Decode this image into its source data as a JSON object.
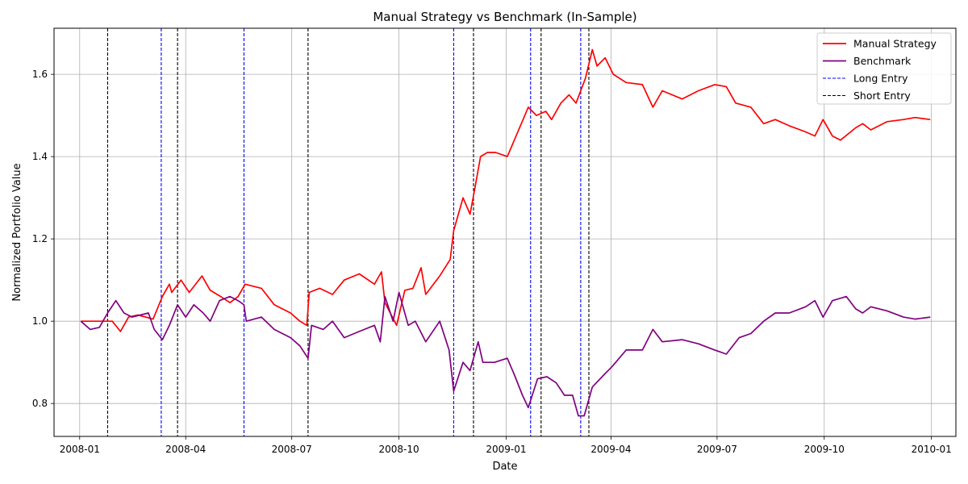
{
  "chart_data": {
    "type": "line",
    "title": "Manual Strategy vs Benchmark (In-Sample)",
    "xlabel": "Date",
    "ylabel": "Normalized Portfolio Value",
    "xlim": [
      "2007-12-10",
      "2010-01-22"
    ],
    "ylim": [
      0.72,
      1.712
    ],
    "x_ticks": [
      "2008-01",
      "2008-04",
      "2008-07",
      "2008-10",
      "2009-01",
      "2009-04",
      "2009-07",
      "2009-10",
      "2010-01"
    ],
    "y_ticks": [
      0.8,
      1.0,
      1.2,
      1.4,
      1.6
    ],
    "y_tick_labels": [
      "0.8",
      "1.0",
      "1.2",
      "1.4",
      "1.6"
    ],
    "grid": true,
    "legend_position": "top-right",
    "series": [
      {
        "name": "Manual Strategy",
        "color": "#ff0000",
        "style": "solid",
        "points": [
          [
            "2008-01-02",
            1.0
          ],
          [
            "2008-01-25",
            1.0
          ],
          [
            "2008-01-29",
            1.0
          ],
          [
            "2008-02-05",
            0.975
          ],
          [
            "2008-02-12",
            1.01
          ],
          [
            "2008-02-20",
            1.015
          ],
          [
            "2008-03-04",
            1.005
          ],
          [
            "2008-03-12",
            1.06
          ],
          [
            "2008-03-18",
            1.09
          ],
          [
            "2008-03-20",
            1.07
          ],
          [
            "2008-03-28",
            1.1
          ],
          [
            "2008-04-04",
            1.07
          ],
          [
            "2008-04-15",
            1.11
          ],
          [
            "2008-04-22",
            1.075
          ],
          [
            "2008-05-01",
            1.06
          ],
          [
            "2008-05-09",
            1.045
          ],
          [
            "2008-05-16",
            1.06
          ],
          [
            "2008-05-22",
            1.09
          ],
          [
            "2008-06-05",
            1.08
          ],
          [
            "2008-06-16",
            1.04
          ],
          [
            "2008-06-30",
            1.02
          ],
          [
            "2008-07-08",
            1.0
          ],
          [
            "2008-07-14",
            0.99
          ],
          [
            "2008-07-16",
            1.07
          ],
          [
            "2008-07-25",
            1.08
          ],
          [
            "2008-08-05",
            1.065
          ],
          [
            "2008-08-15",
            1.1
          ],
          [
            "2008-08-28",
            1.115
          ],
          [
            "2008-09-10",
            1.09
          ],
          [
            "2008-09-16",
            1.12
          ],
          [
            "2008-09-19",
            1.045
          ],
          [
            "2008-09-29",
            0.99
          ],
          [
            "2008-10-06",
            1.075
          ],
          [
            "2008-10-13",
            1.08
          ],
          [
            "2008-10-20",
            1.13
          ],
          [
            "2008-10-24",
            1.065
          ],
          [
            "2008-11-05",
            1.11
          ],
          [
            "2008-11-14",
            1.15
          ],
          [
            "2008-11-17",
            1.22
          ],
          [
            "2008-11-25",
            1.3
          ],
          [
            "2008-12-01",
            1.26
          ],
          [
            "2008-12-05",
            1.32
          ],
          [
            "2008-12-10",
            1.4
          ],
          [
            "2008-12-16",
            1.41
          ],
          [
            "2008-12-23",
            1.41
          ],
          [
            "2009-01-02",
            1.4
          ],
          [
            "2009-01-08",
            1.44
          ],
          [
            "2009-01-20",
            1.52
          ],
          [
            "2009-01-27",
            1.5
          ],
          [
            "2009-02-04",
            1.51
          ],
          [
            "2009-02-09",
            1.49
          ],
          [
            "2009-02-17",
            1.53
          ],
          [
            "2009-02-24",
            1.55
          ],
          [
            "2009-03-02",
            1.53
          ],
          [
            "2009-03-10",
            1.59
          ],
          [
            "2009-03-16",
            1.66
          ],
          [
            "2009-03-20",
            1.62
          ],
          [
            "2009-03-27",
            1.64
          ],
          [
            "2009-04-03",
            1.6
          ],
          [
            "2009-04-14",
            1.58
          ],
          [
            "2009-04-28",
            1.575
          ],
          [
            "2009-05-07",
            1.52
          ],
          [
            "2009-05-15",
            1.56
          ],
          [
            "2009-06-01",
            1.54
          ],
          [
            "2009-06-15",
            1.56
          ],
          [
            "2009-06-29",
            1.575
          ],
          [
            "2009-07-09",
            1.57
          ],
          [
            "2009-07-17",
            1.53
          ],
          [
            "2009-07-30",
            1.52
          ],
          [
            "2009-08-10",
            1.48
          ],
          [
            "2009-08-20",
            1.49
          ],
          [
            "2009-09-01",
            1.475
          ],
          [
            "2009-09-15",
            1.46
          ],
          [
            "2009-09-23",
            1.45
          ],
          [
            "2009-09-30",
            1.49
          ],
          [
            "2009-10-08",
            1.45
          ],
          [
            "2009-10-15",
            1.44
          ],
          [
            "2009-10-28",
            1.47
          ],
          [
            "2009-11-03",
            1.48
          ],
          [
            "2009-11-10",
            1.465
          ],
          [
            "2009-11-24",
            1.485
          ],
          [
            "2009-12-08",
            1.49
          ],
          [
            "2009-12-18",
            1.495
          ],
          [
            "2009-12-31",
            1.49
          ]
        ]
      },
      {
        "name": "Benchmark",
        "color": "#800080",
        "style": "solid",
        "points": [
          [
            "2008-01-02",
            1.0
          ],
          [
            "2008-01-10",
            0.98
          ],
          [
            "2008-01-18",
            0.985
          ],
          [
            "2008-01-25",
            1.02
          ],
          [
            "2008-02-01",
            1.05
          ],
          [
            "2008-02-08",
            1.02
          ],
          [
            "2008-02-15",
            1.01
          ],
          [
            "2008-02-22",
            1.015
          ],
          [
            "2008-02-29",
            1.02
          ],
          [
            "2008-03-05",
            0.98
          ],
          [
            "2008-03-12",
            0.955
          ],
          [
            "2008-03-18",
            0.99
          ],
          [
            "2008-03-25",
            1.04
          ],
          [
            "2008-04-01",
            1.01
          ],
          [
            "2008-04-08",
            1.04
          ],
          [
            "2008-04-16",
            1.02
          ],
          [
            "2008-04-22",
            1.0
          ],
          [
            "2008-04-30",
            1.05
          ],
          [
            "2008-05-09",
            1.06
          ],
          [
            "2008-05-16",
            1.05
          ],
          [
            "2008-05-21",
            1.04
          ],
          [
            "2008-05-23",
            1.0
          ],
          [
            "2008-06-05",
            1.01
          ],
          [
            "2008-06-16",
            0.98
          ],
          [
            "2008-06-30",
            0.96
          ],
          [
            "2008-07-08",
            0.94
          ],
          [
            "2008-07-15",
            0.91
          ],
          [
            "2008-07-18",
            0.99
          ],
          [
            "2008-07-28",
            0.98
          ],
          [
            "2008-08-05",
            1.0
          ],
          [
            "2008-08-15",
            0.96
          ],
          [
            "2008-08-28",
            0.975
          ],
          [
            "2008-09-10",
            0.99
          ],
          [
            "2008-09-15",
            0.95
          ],
          [
            "2008-09-19",
            1.06
          ],
          [
            "2008-09-26",
            1.0
          ],
          [
            "2008-10-01",
            1.07
          ],
          [
            "2008-10-09",
            0.99
          ],
          [
            "2008-10-15",
            1.0
          ],
          [
            "2008-10-24",
            0.95
          ],
          [
            "2008-11-05",
            1.0
          ],
          [
            "2008-11-13",
            0.93
          ],
          [
            "2008-11-17",
            0.83
          ],
          [
            "2008-11-25",
            0.9
          ],
          [
            "2008-12-01",
            0.88
          ],
          [
            "2008-12-08",
            0.95
          ],
          [
            "2008-12-12",
            0.9
          ],
          [
            "2008-12-22",
            0.9
          ],
          [
            "2009-01-02",
            0.91
          ],
          [
            "2009-01-08",
            0.87
          ],
          [
            "2009-01-15",
            0.82
          ],
          [
            "2009-01-20",
            0.79
          ],
          [
            "2009-01-28",
            0.86
          ],
          [
            "2009-02-05",
            0.865
          ],
          [
            "2009-02-13",
            0.85
          ],
          [
            "2009-02-20",
            0.82
          ],
          [
            "2009-02-27",
            0.82
          ],
          [
            "2009-03-04",
            0.77
          ],
          [
            "2009-03-09",
            0.77
          ],
          [
            "2009-03-16",
            0.84
          ],
          [
            "2009-03-26",
            0.87
          ],
          [
            "2009-04-02",
            0.89
          ],
          [
            "2009-04-14",
            0.93
          ],
          [
            "2009-04-28",
            0.93
          ],
          [
            "2009-05-07",
            0.98
          ],
          [
            "2009-05-15",
            0.95
          ],
          [
            "2009-06-01",
            0.955
          ],
          [
            "2009-06-15",
            0.945
          ],
          [
            "2009-06-29",
            0.93
          ],
          [
            "2009-07-09",
            0.92
          ],
          [
            "2009-07-20",
            0.96
          ],
          [
            "2009-07-30",
            0.97
          ],
          [
            "2009-08-10",
            1.0
          ],
          [
            "2009-08-20",
            1.02
          ],
          [
            "2009-09-01",
            1.02
          ],
          [
            "2009-09-15",
            1.035
          ],
          [
            "2009-09-23",
            1.05
          ],
          [
            "2009-09-30",
            1.01
          ],
          [
            "2009-10-08",
            1.05
          ],
          [
            "2009-10-20",
            1.06
          ],
          [
            "2009-10-28",
            1.03
          ],
          [
            "2009-11-03",
            1.02
          ],
          [
            "2009-11-10",
            1.035
          ],
          [
            "2009-11-24",
            1.025
          ],
          [
            "2009-12-08",
            1.01
          ],
          [
            "2009-12-18",
            1.005
          ],
          [
            "2009-12-31",
            1.01
          ]
        ]
      }
    ],
    "vlines": [
      {
        "name": "Long Entry",
        "color": "#0000ff",
        "style": "dashed",
        "dates": [
          "2008-03-11",
          "2008-05-21",
          "2008-11-17",
          "2009-01-22",
          "2009-03-06"
        ]
      },
      {
        "name": "Short Entry",
        "color": "#000000",
        "style": "dashed",
        "dates": [
          "2008-01-25",
          "2008-03-25",
          "2008-07-15",
          "2008-12-04",
          "2009-01-31",
          "2009-03-13"
        ]
      }
    ],
    "legend": [
      "Manual Strategy",
      "Benchmark",
      "Long Entry",
      "Short Entry"
    ]
  }
}
